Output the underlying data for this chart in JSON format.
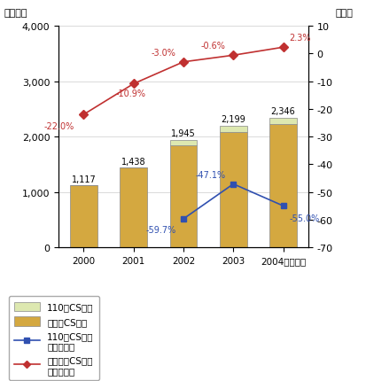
{
  "years": [
    2000,
    2001,
    2002,
    2003,
    2004
  ],
  "bar_110cs": [
    0,
    0,
    110,
    110,
    123
  ],
  "bar_othcs": [
    1117,
    1438,
    1835,
    2089,
    2223
  ],
  "bar_total": [
    1117,
    1438,
    1945,
    2199,
    2346
  ],
  "line_110cs_rate": [
    null,
    null,
    -59.7,
    -47.1,
    -55.0
  ],
  "line_othcs_rate": [
    -22.0,
    -10.9,
    -3.0,
    -0.6,
    2.3
  ],
  "bar_110cs_color": "#dde8b0",
  "bar_othcs_color": "#d4a840",
  "bar_110cs_edge": "#888888",
  "bar_othcs_edge": "#888888",
  "line_110cs_color": "#3050b0",
  "line_othcs_color": "#c03030",
  "ylim_left": [
    0,
    4000
  ],
  "ylim_right": [
    -70,
    10
  ],
  "yticks_left": [
    0,
    1000,
    2000,
    3000,
    4000
  ],
  "yticks_right": [
    -70,
    -60,
    -50,
    -40,
    -30,
    -20,
    -10,
    0,
    10
  ],
  "ylabel_left": "（億円）",
  "ylabel_right": "（％）",
  "xlabel_suffix": "（年度）",
  "bar_labels": [
    "1,117",
    "1,438",
    "1,945",
    "2,199",
    "2,346"
  ],
  "line_110cs_labels": [
    null,
    null,
    "-59.7%",
    "-47.1%",
    "-55.0%"
  ],
  "line_othcs_labels": [
    "-22.0%",
    "-10.9%",
    "-3.0%",
    "-0.6%",
    "2.3%"
  ],
  "legend_110cs": "110度CS放送",
  "legend_othcs": "その他CS放送",
  "legend_110cs_rate": "110度CS放送\n営業利益率",
  "legend_othcs_rate": "その他のCS放送\n営業利益率",
  "background_color": "#ffffff"
}
